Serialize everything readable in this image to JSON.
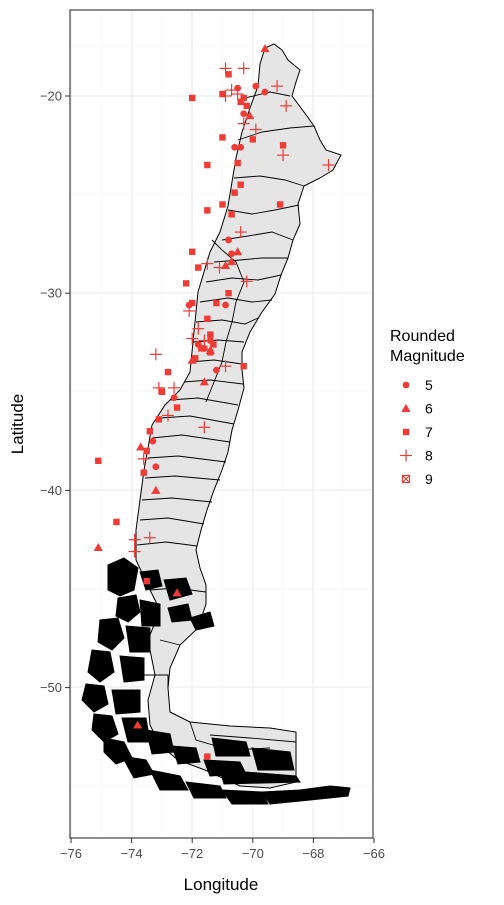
{
  "chart_data": {
    "type": "scatter",
    "title": "",
    "xlabel": "Longitude",
    "ylabel": "Latitude",
    "xlim": [
      -76.2,
      -66.0
    ],
    "ylim": [
      -57.5,
      -16.5
    ],
    "x_ticks": [
      -76,
      -74,
      -72,
      -70,
      -68,
      -66
    ],
    "x_tick_labels": [
      "−76",
      "−74",
      "−72",
      "−70",
      "−68",
      "−66"
    ],
    "y_ticks": [
      -20,
      -30,
      -40,
      -50
    ],
    "y_tick_labels": [
      "−20",
      "−30",
      "−40",
      "−50"
    ],
    "grid": true,
    "basemap": "Chile regional boundaries (filled light grey)",
    "legend": {
      "title_line1": "Rounded",
      "title_line2": "Magnitude",
      "position": "right",
      "entries": [
        {
          "label": "5",
          "shape": "circle"
        },
        {
          "label": "6",
          "shape": "triangle"
        },
        {
          "label": "7",
          "shape": "square"
        },
        {
          "label": "8",
          "shape": "plus"
        },
        {
          "label": "9",
          "shape": "boxed-x"
        }
      ]
    },
    "colors": {
      "points": "#f03b35",
      "land": "#e5e5e5",
      "border": "#000000",
      "grid": "#ebebeb"
    },
    "series": [
      {
        "name": "5",
        "shape": "circle",
        "points": [
          [
            -70.5,
            -19.6
          ],
          [
            -69.9,
            -19.5
          ],
          [
            -69.6,
            -19.8
          ],
          [
            -70.3,
            -20.9
          ],
          [
            -70.4,
            -22.6
          ],
          [
            -70.6,
            -22.6
          ],
          [
            -70.8,
            -27.3
          ],
          [
            -70.9,
            -30.6
          ],
          [
            -71.4,
            -32.4
          ],
          [
            -71.6,
            -32.8
          ],
          [
            -71.2,
            -33.9
          ],
          [
            -72.6,
            -35.3
          ],
          [
            -73.2,
            -38.8
          ],
          [
            -73.3,
            -37.5
          ],
          [
            -72.1,
            -30.6
          ],
          [
            -71.8,
            -32.6
          ],
          [
            -70.7,
            -28.0
          ]
        ]
      },
      {
        "name": "6",
        "shape": "triangle",
        "points": [
          [
            -69.6,
            -17.6
          ],
          [
            -70.1,
            -21.0
          ],
          [
            -70.7,
            -28.4
          ],
          [
            -70.5,
            -27.9
          ],
          [
            -72.0,
            -33.4
          ],
          [
            -71.4,
            -32.9
          ],
          [
            -73.7,
            -37.8
          ],
          [
            -73.2,
            -40.0
          ],
          [
            -75.1,
            -42.9
          ],
          [
            -72.5,
            -45.2
          ],
          [
            -73.8,
            -51.9
          ],
          [
            -70.9,
            -28.6
          ],
          [
            -71.6,
            -34.5
          ]
        ]
      },
      {
        "name": "7",
        "shape": "square",
        "points": [
          [
            -70.8,
            -18.9
          ],
          [
            -71.0,
            -19.9
          ],
          [
            -70.4,
            -20.3
          ],
          [
            -70.2,
            -20.5
          ],
          [
            -70.3,
            -20.1
          ],
          [
            -70.0,
            -22.2
          ],
          [
            -70.5,
            -23.4
          ],
          [
            -70.6,
            -24.9
          ],
          [
            -71.0,
            -22.1
          ],
          [
            -71.5,
            -23.5
          ],
          [
            -72.0,
            -20.1
          ],
          [
            -69.0,
            -22.5
          ],
          [
            -70.4,
            -24.5
          ],
          [
            -69.1,
            -25.5
          ],
          [
            -70.7,
            -26.0
          ],
          [
            -71.5,
            -25.8
          ],
          [
            -71.0,
            -25.5
          ],
          [
            -72.0,
            -27.9
          ],
          [
            -71.8,
            -28.7
          ],
          [
            -72.2,
            -29.5
          ],
          [
            -72.0,
            -30.5
          ],
          [
            -71.5,
            -31.3
          ],
          [
            -71.7,
            -32.8
          ],
          [
            -71.4,
            -33.0
          ],
          [
            -71.3,
            -32.6
          ],
          [
            -71.9,
            -33.3
          ],
          [
            -70.3,
            -33.7
          ],
          [
            -72.8,
            -34.0
          ],
          [
            -73.0,
            -35.0
          ],
          [
            -72.5,
            -35.8
          ],
          [
            -73.1,
            -36.4
          ],
          [
            -73.4,
            -37.0
          ],
          [
            -73.5,
            -38.0
          ],
          [
            -73.6,
            -39.1
          ],
          [
            -75.1,
            -38.5
          ],
          [
            -74.5,
            -41.6
          ],
          [
            -73.5,
            -44.6
          ],
          [
            -71.5,
            -53.5
          ],
          [
            -70.8,
            -30.0
          ],
          [
            -71.2,
            -30.5
          ],
          [
            -71.4,
            -32.1
          ]
        ]
      },
      {
        "name": "8",
        "shape": "plus",
        "points": [
          [
            -70.9,
            -18.6
          ],
          [
            -70.3,
            -18.6
          ],
          [
            -70.9,
            -20.0
          ],
          [
            -70.5,
            -19.9
          ],
          [
            -70.7,
            -19.7
          ],
          [
            -69.2,
            -19.5
          ],
          [
            -68.9,
            -20.5
          ],
          [
            -69.9,
            -21.7
          ],
          [
            -70.3,
            -21.4
          ],
          [
            -67.5,
            -23.5
          ],
          [
            -69.0,
            -23.0
          ],
          [
            -70.4,
            -26.9
          ],
          [
            -70.2,
            -29.4
          ],
          [
            -71.5,
            -28.5
          ],
          [
            -71.1,
            -28.7
          ],
          [
            -72.1,
            -30.9
          ],
          [
            -71.8,
            -31.8
          ],
          [
            -72.0,
            -32.3
          ],
          [
            -71.6,
            -32.4
          ],
          [
            -73.2,
            -33.1
          ],
          [
            -73.1,
            -34.8
          ],
          [
            -72.6,
            -34.8
          ],
          [
            -72.8,
            -36.2
          ],
          [
            -71.6,
            -36.8
          ],
          [
            -73.6,
            -38.4
          ],
          [
            -73.9,
            -42.5
          ],
          [
            -73.9,
            -43.1
          ],
          [
            -73.4,
            -42.4
          ],
          [
            -70.9,
            -33.7
          ]
        ]
      },
      {
        "name": "9",
        "shape": "boxed-x",
        "points": []
      }
    ]
  }
}
